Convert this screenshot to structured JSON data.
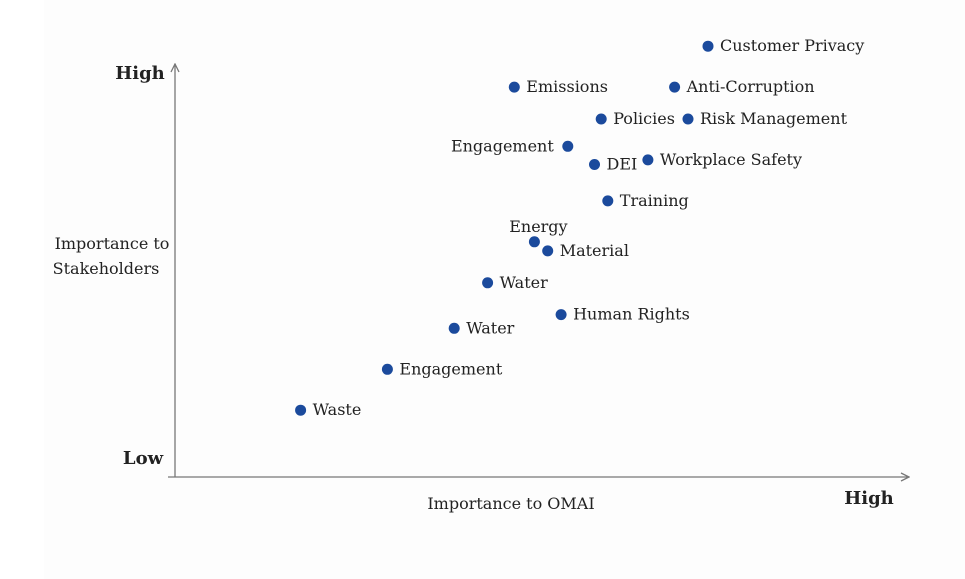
{
  "chart_data": {
    "type": "scatter",
    "title": "",
    "xlabel": "Importance to OMAI",
    "ylabel": [
      "Importance to",
      "Stakeholders"
    ],
    "y_axis_top_label": "High",
    "y_axis_bottom_label": "Low",
    "x_axis_end_label": "High",
    "xlim": [
      0,
      100
    ],
    "ylim": [
      0,
      100
    ],
    "grid": false,
    "point_color": "#1b4a9c",
    "axis_color": "#777777",
    "points": [
      {
        "label": "Customer Privacy",
        "x": 78,
        "y": 96,
        "label_side": "right"
      },
      {
        "label": "Emissions",
        "x": 49,
        "y": 87,
        "label_side": "right"
      },
      {
        "label": "Anti-Corruption",
        "x": 73,
        "y": 87,
        "label_side": "right"
      },
      {
        "label": "Policies",
        "x": 62,
        "y": 80,
        "label_side": "right"
      },
      {
        "label": "Risk Management",
        "x": 75,
        "y": 80,
        "label_side": "right"
      },
      {
        "label": "Engagement",
        "x": 57,
        "y": 74,
        "label_side": "left"
      },
      {
        "label": "DEI",
        "x": 61,
        "y": 70,
        "label_side": "right"
      },
      {
        "label": "Workplace Safety",
        "x": 69,
        "y": 71,
        "label_side": "right"
      },
      {
        "label": "Training",
        "x": 63,
        "y": 62,
        "label_side": "right"
      },
      {
        "label": "Energy",
        "x": 52,
        "y": 53,
        "label_side": "above"
      },
      {
        "label": "Material",
        "x": 54,
        "y": 51,
        "label_side": "right"
      },
      {
        "label": "Water",
        "x": 45,
        "y": 44,
        "label_side": "right"
      },
      {
        "label": "Human Rights",
        "x": 56,
        "y": 37,
        "label_side": "right"
      },
      {
        "label": "Water",
        "x": 40,
        "y": 34,
        "label_side": "right"
      },
      {
        "label": "Engagement",
        "x": 30,
        "y": 25,
        "label_side": "right"
      },
      {
        "label": "Waste",
        "x": 17,
        "y": 16,
        "label_side": "right"
      }
    ]
  }
}
